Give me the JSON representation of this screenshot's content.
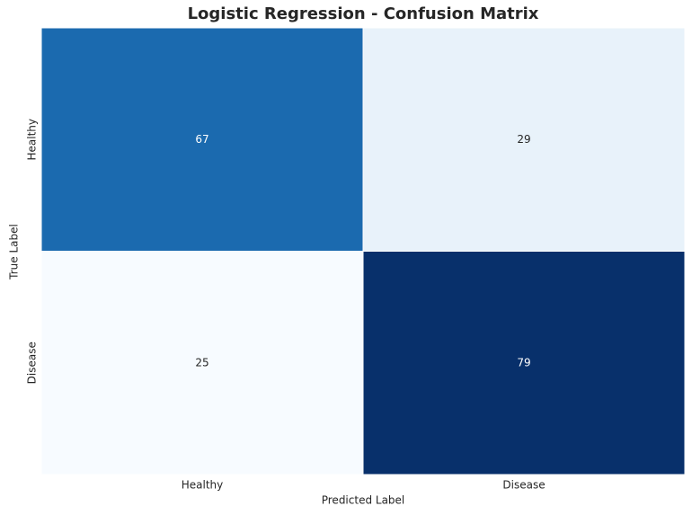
{
  "chart_data": {
    "type": "heatmap",
    "title": "Logistic Regression - Confusion Matrix",
    "x_categories": [
      "Healthy",
      "Disease"
    ],
    "y_categories": [
      "Healthy",
      "Disease"
    ],
    "values": [
      [
        67,
        29
      ],
      [
        25,
        79
      ]
    ],
    "xlabel": "Predicted Label",
    "ylabel": "True Label",
    "color_scale": [
      "#f7fbff",
      "#deebf7",
      "#c6dbef",
      "#9ecae1",
      "#6baed6",
      "#4292c6",
      "#2171b5",
      "#08519c",
      "#08306b"
    ]
  }
}
